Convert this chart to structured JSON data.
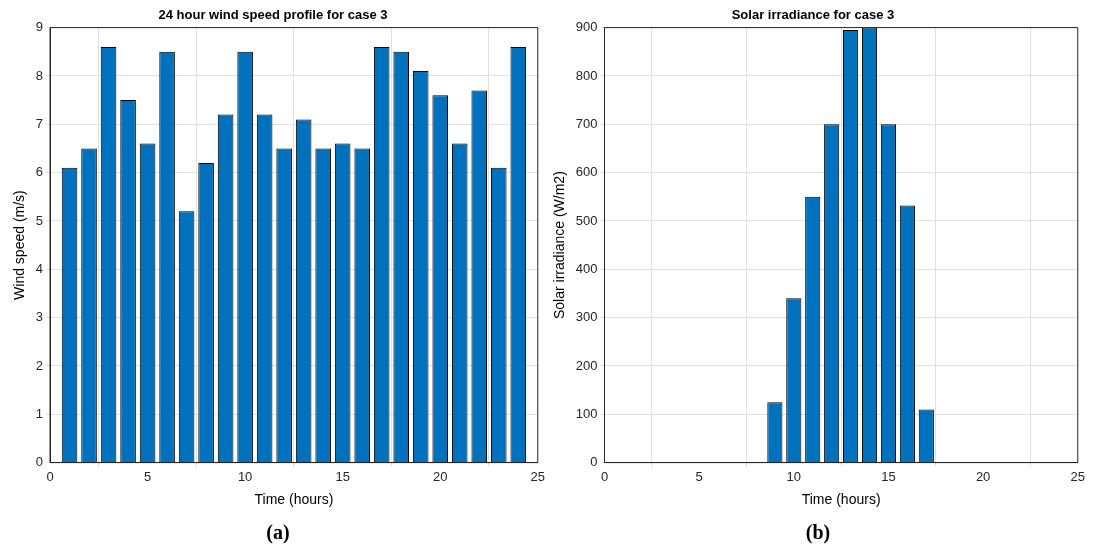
{
  "chart_data": [
    {
      "type": "bar",
      "title": "24 hour wind speed profile for case 3",
      "xlabel": "Time (hours)",
      "ylabel": "Wind speed (m/s)",
      "x": [
        1,
        2,
        3,
        4,
        5,
        6,
        7,
        8,
        9,
        10,
        11,
        12,
        13,
        14,
        15,
        16,
        17,
        18,
        19,
        20,
        21,
        22,
        23,
        24
      ],
      "values": [
        6.1,
        6.5,
        8.6,
        7.5,
        6.6,
        8.5,
        5.2,
        6.2,
        7.2,
        8.5,
        7.2,
        6.5,
        7.1,
        6.5,
        6.6,
        6.5,
        8.6,
        8.5,
        8.1,
        7.6,
        6.6,
        7.7,
        6.1,
        8.6
      ],
      "color": "#0072bd",
      "xlim": [
        0,
        25
      ],
      "xticks": [
        0,
        5,
        10,
        15,
        20,
        25
      ],
      "ylim": [
        0,
        9
      ],
      "yticks": [
        0,
        1,
        2,
        3,
        4,
        5,
        6,
        7,
        8,
        9
      ],
      "grid": true,
      "annotations": [
        "(a)"
      ]
    },
    {
      "type": "bar",
      "title": "Solar irradiance for case 3",
      "xlabel": "Time (hours)",
      "ylabel": "Solar irradiance (W/m2)",
      "x": [
        1,
        2,
        3,
        4,
        5,
        6,
        7,
        8,
        9,
        10,
        11,
        12,
        13,
        14,
        15,
        16,
        17,
        18,
        19,
        20,
        21,
        22,
        23,
        24
      ],
      "values": [
        0,
        0,
        0,
        0,
        0,
        0,
        0,
        0,
        125,
        340,
        550,
        700,
        895,
        900,
        700,
        532,
        110,
        0,
        0,
        0,
        0,
        0,
        0,
        0
      ],
      "color": "#0072bd",
      "xlim": [
        0,
        25
      ],
      "xticks": [
        0,
        5,
        10,
        15,
        20,
        25
      ],
      "ylim": [
        0,
        900
      ],
      "yticks": [
        0,
        100,
        200,
        300,
        400,
        500,
        600,
        700,
        800,
        900
      ],
      "grid": true,
      "annotations": [
        "(b)"
      ]
    }
  ]
}
